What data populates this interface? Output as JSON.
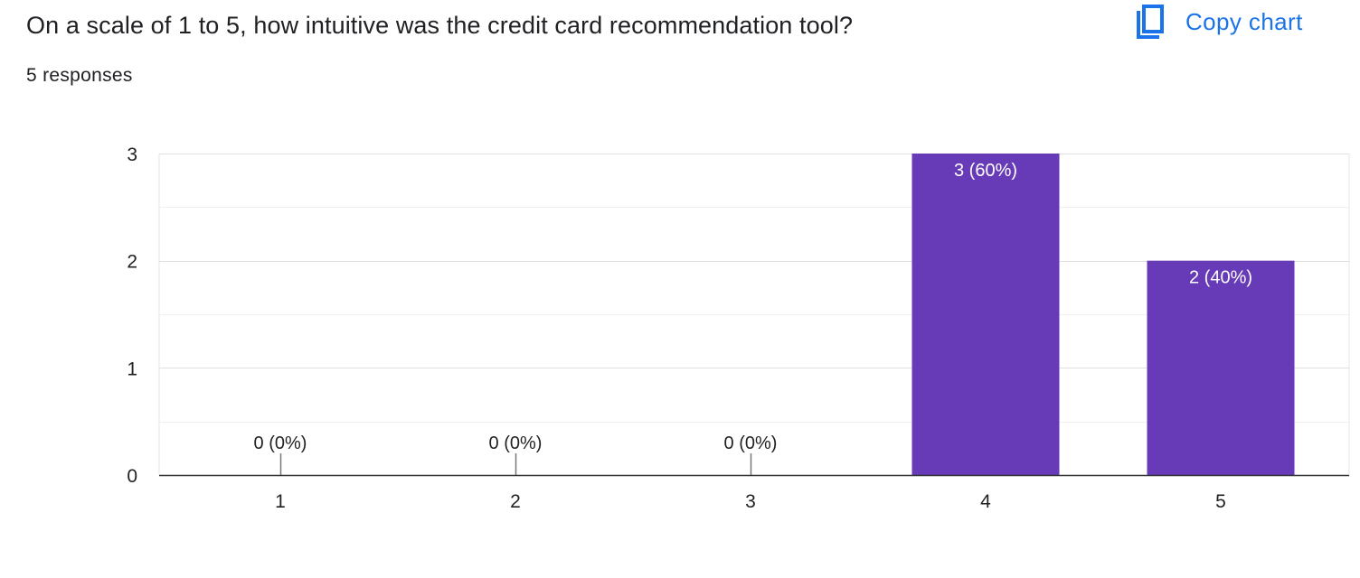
{
  "question": {
    "title": "On a scale of 1 to 5, how intuitive was the credit card recommendation tool?",
    "responses": "5 responses"
  },
  "toolbar": {
    "copy_label": "Copy chart",
    "copy_icon": "copy-icon",
    "accent_color": "#1a73e8"
  },
  "chart_data": {
    "type": "bar",
    "categories": [
      "1",
      "2",
      "3",
      "4",
      "5"
    ],
    "values": [
      0,
      0,
      0,
      3,
      2
    ],
    "data_labels": [
      "0 (0%)",
      "0 (0%)",
      "0 (0%)",
      "3 (60%)",
      "2 (40%)"
    ],
    "y_ticks": [
      "0",
      "1",
      "2",
      "3"
    ],
    "ylim": [
      0,
      3
    ],
    "minor_gridlines": true,
    "bar_color": "#673ab7",
    "xlabel": "",
    "ylabel": ""
  }
}
